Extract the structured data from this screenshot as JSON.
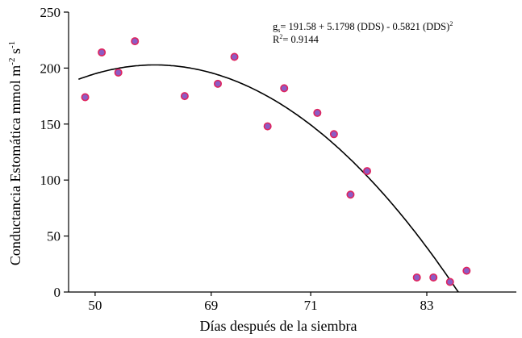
{
  "chart_data": {
    "type": "scatter",
    "xlabel": "Días después de la siembra",
    "ylabel": "Conductancia Estomática mmol m",
    "ylabel_sup1": "-2",
    "ylabel_mid": " s",
    "ylabel_sup2": "-1",
    "x_tick_labels": [
      "50",
      "69",
      "71",
      "83"
    ],
    "y_ticks": [
      0,
      50,
      100,
      150,
      200,
      250
    ],
    "ylim": [
      0,
      250
    ],
    "points": [
      {
        "x": 1,
        "y": 174
      },
      {
        "x": 2,
        "y": 214
      },
      {
        "x": 3,
        "y": 196
      },
      {
        "x": 4,
        "y": 224
      },
      {
        "x": 7,
        "y": 175
      },
      {
        "x": 9,
        "y": 186
      },
      {
        "x": 10,
        "y": 210
      },
      {
        "x": 12,
        "y": 148
      },
      {
        "x": 13,
        "y": 182
      },
      {
        "x": 15,
        "y": 160
      },
      {
        "x": 16,
        "y": 141
      },
      {
        "x": 17,
        "y": 87
      },
      {
        "x": 18,
        "y": 108
      },
      {
        "x": 21,
        "y": 13
      },
      {
        "x": 22,
        "y": 13
      },
      {
        "x": 23,
        "y": 9
      },
      {
        "x": 24,
        "y": 19
      }
    ],
    "equation": {
      "g_main": "g",
      "g_sub": "s",
      "rest": "= 191.58 + 5.1798 (DDS) - 0.5821 (DDS)",
      "sup": "2",
      "r2_label": "R",
      "r2_sup": "2",
      "r2_value": "= 0.9144"
    },
    "marker_fill": "#8c5cc4",
    "marker_stroke": "#e0245e",
    "line_color": "#000000"
  }
}
